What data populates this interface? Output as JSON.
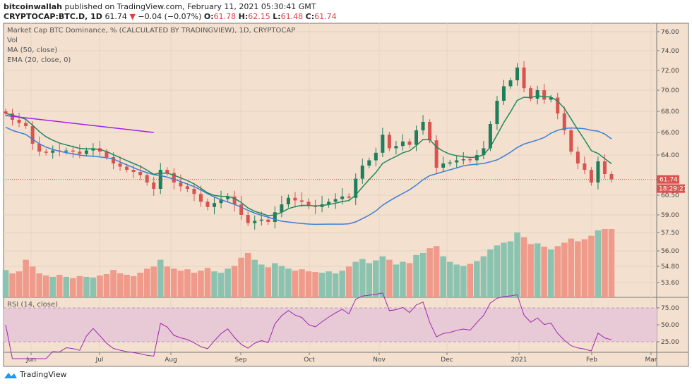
{
  "header": {
    "author": "bitcoinwallah",
    "published": "published on TradingView.com, February 11, 2021 05:30:41 GMT",
    "symbol": "CRYPTOCAP:BTC.D, 1D",
    "last": "61.74",
    "change": "−0.04 (−0.07%)",
    "o_label": "O:",
    "o": "61.78",
    "h_label": "H:",
    "h": "62.15",
    "l_label": "L:",
    "l": "61.48",
    "c_label": "C:",
    "c": "61.74"
  },
  "legend": {
    "title": "Market Cap BTC Dominance, % (CALCULATED BY TRADINGVIEW), 1D, CRYPTOCAP",
    "vol": "Vol",
    "ma": "MA (50, close)",
    "ema": "EMA (20, close, 0)",
    "rsi": "RSI (14, close)"
  },
  "footer": {
    "brand": "TradingView"
  },
  "colors": {
    "background": "#f3e0cf",
    "up": "#1f7f5c",
    "down": "#d9534f",
    "vol_up": "#8cc3b0",
    "vol_down": "#ef9a8a",
    "ma": "#3a7fd8",
    "ema": "#1e8a5e",
    "rsi": "#9c27b0",
    "trendline": "#a020f0",
    "rsi_band": "#e8c9d6"
  },
  "chart_data": {
    "type": "candlestick",
    "price_axis": {
      "ticks": [
        "76.00",
        "74.00",
        "72.00",
        "70.00",
        "68.00",
        "66.00",
        "64.00",
        "60.50",
        "59.00",
        "57.50",
        "56.00",
        "54.80",
        "53.60"
      ],
      "scale": "log"
    },
    "rsi_axis": {
      "ticks": [
        "75.00",
        "50.00",
        "25.00"
      ],
      "band": [
        25,
        75
      ]
    },
    "x_ticks": [
      "Jun",
      "Jul",
      "Aug",
      "Sep",
      "Oct",
      "Nov",
      "Dec",
      "2021",
      "Feb",
      "Mar"
    ],
    "last_price_label": "61.74",
    "countdown_label": "18:29:21",
    "closes": [
      67.8,
      67.2,
      66.9,
      66.6,
      65.0,
      64.3,
      64.2,
      64.4,
      64.3,
      64.4,
      64.3,
      64.1,
      64.4,
      64.6,
      64.3,
      63.8,
      63.2,
      62.9,
      62.6,
      62.4,
      62.1,
      61.5,
      61.0,
      62.6,
      62.3,
      61.5,
      61.2,
      61.0,
      60.6,
      60.0,
      59.6,
      59.9,
      60.2,
      60.4,
      59.8,
      59.0,
      58.3,
      58.5,
      58.6,
      58.4,
      59.2,
      59.8,
      60.3,
      60.1,
      60.0,
      59.7,
      59.6,
      59.8,
      60.0,
      60.2,
      60.4,
      60.3,
      61.8,
      63.0,
      63.5,
      64.2,
      65.8,
      64.6,
      64.8,
      65.2,
      64.9,
      66.2,
      67.0,
      65.3,
      62.8,
      63.2,
      63.3,
      63.5,
      63.6,
      63.5,
      64.0,
      64.6,
      66.8,
      69.0,
      70.4,
      71.0,
      72.3,
      70.2,
      69.2,
      70.0,
      69.1,
      69.3,
      67.8,
      66.2,
      64.3,
      63.2,
      62.6,
      61.5,
      63.4,
      62.2,
      61.74
    ],
    "volumes": [
      4,
      3.5,
      3.8,
      5.5,
      4.5,
      3.5,
      3.2,
      3.0,
      3.3,
      3.0,
      2.8,
      3.1,
      3.0,
      2.9,
      3.2,
      3.4,
      4,
      3.5,
      3.3,
      3.1,
      3.6,
      4.2,
      4.5,
      5.5,
      4.5,
      4.2,
      3.9,
      4.1,
      3.6,
      3.9,
      4.3,
      3.8,
      3.6,
      4.2,
      4.6,
      5.8,
      6.5,
      5.5,
      4.8,
      4.4,
      5.0,
      4.6,
      4.2,
      3.9,
      4.1,
      3.8,
      3.7,
      3.6,
      3.8,
      3.5,
      3.9,
      4.5,
      5.2,
      5.6,
      5.0,
      5.4,
      6.0,
      5.5,
      4.8,
      5.2,
      5.0,
      6.2,
      6.5,
      7.2,
      7.5,
      6.0,
      5.2,
      4.8,
      4.6,
      4.9,
      5.3,
      6.0,
      7.0,
      7.6,
      8.0,
      8.2,
      9.5,
      8.8,
      7.8,
      7.9,
      7.4,
      7.0,
      7.5,
      8.0,
      8.6,
      8.2,
      8.5,
      9.0,
      9.8,
      10.0,
      10.0
    ],
    "trendline": {
      "from": 67.6,
      "to": 66.0
    }
  }
}
